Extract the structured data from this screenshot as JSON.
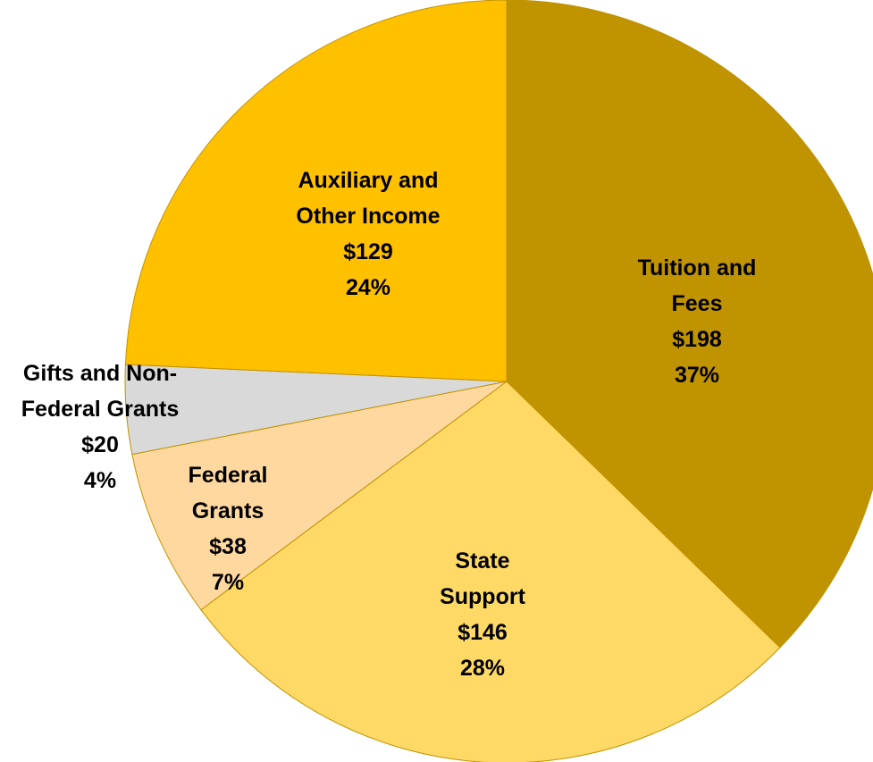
{
  "chart_data": {
    "type": "pie",
    "categories": [
      "Tuition and Fees",
      "State Support",
      "Federal Grants",
      "Gifts and Non-Federal Grants",
      "Auxiliary and Other Income"
    ],
    "values": [
      198,
      146,
      38,
      20,
      129
    ],
    "value_labels": [
      "$198",
      "$146",
      "$38",
      "$20",
      "$129"
    ],
    "percent_labels": [
      "37%",
      "28%",
      "7%",
      "4%",
      "24%"
    ],
    "colors": [
      "#C09300",
      "#FFD966",
      "#FFD8A0",
      "#D9D9D9",
      "#FFC000"
    ]
  }
}
